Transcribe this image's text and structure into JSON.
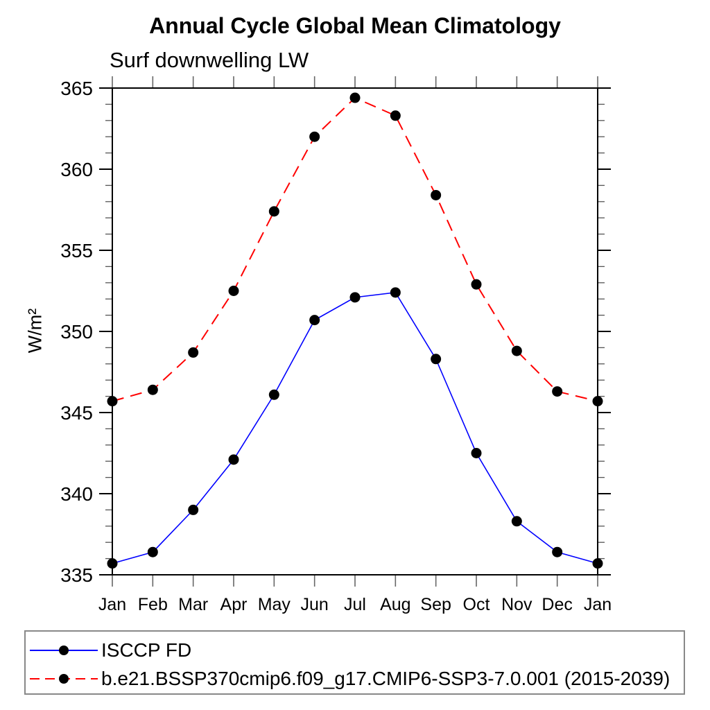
{
  "chart_data": {
    "type": "line",
    "title": "Annual Cycle Global Mean Climatology",
    "subtitle": "Surf downwelling LW",
    "ylabel": "W/m²",
    "xlabel": "",
    "categories": [
      "Jan",
      "Feb",
      "Mar",
      "Apr",
      "May",
      "Jun",
      "Jul",
      "Aug",
      "Sep",
      "Oct",
      "Nov",
      "Dec",
      "Jan"
    ],
    "ylim": [
      335,
      365
    ],
    "y_major_ticks": [
      335,
      340,
      345,
      350,
      355,
      360,
      365
    ],
    "y_minor_step": 1,
    "grid": false,
    "legend_position": "bottom",
    "series": [
      {
        "name": "ISCCP FD",
        "color": "#0000ff",
        "line_style": "solid",
        "marker": "circle",
        "marker_color": "#000000",
        "values": [
          335.7,
          336.4,
          339.0,
          342.1,
          346.1,
          350.7,
          352.1,
          352.4,
          348.3,
          342.5,
          338.3,
          336.4,
          335.7
        ]
      },
      {
        "name": "b.e21.BSSP370cmip6.f09_g17.CMIP6-SSP3-7.0.001 (2015-2039)",
        "color": "#ff0000",
        "line_style": "dashed",
        "marker": "circle",
        "marker_color": "#000000",
        "values": [
          345.7,
          346.4,
          348.7,
          352.5,
          357.4,
          362.0,
          364.4,
          363.3,
          358.4,
          352.9,
          348.8,
          346.3,
          345.7
        ]
      }
    ]
  }
}
